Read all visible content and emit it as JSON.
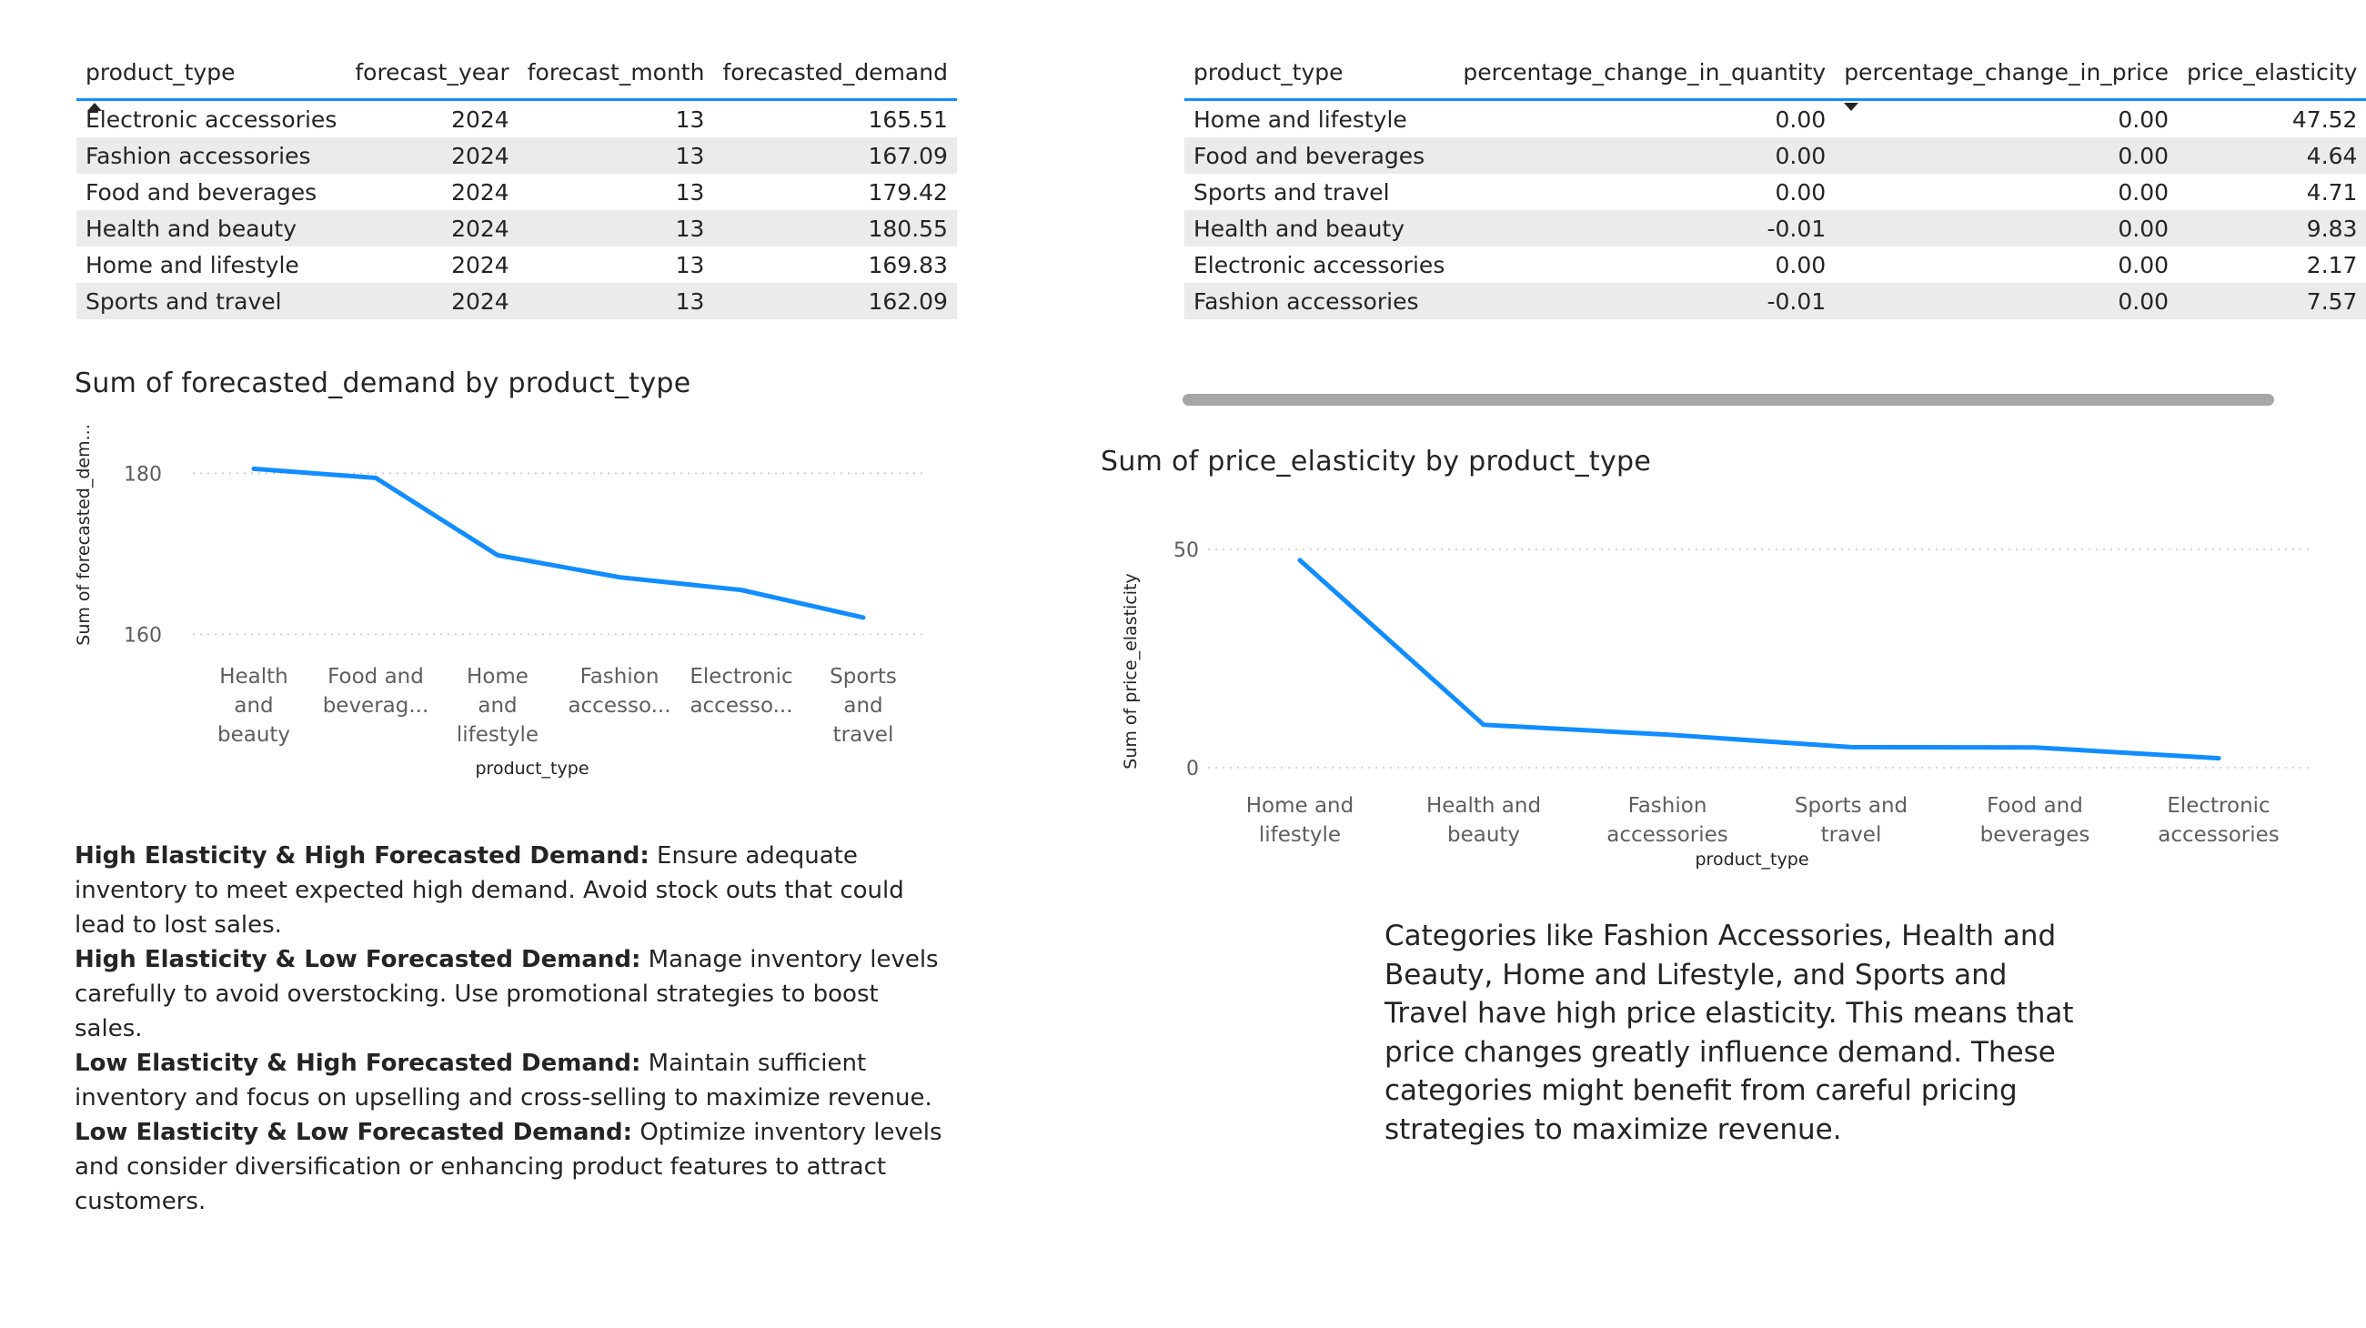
{
  "demand_table": {
    "columns": [
      "product_type",
      "forecast_year",
      "forecast_month",
      "forecasted_demand"
    ],
    "rows": [
      [
        "Electronic accessories",
        "2024",
        "13",
        "165.51"
      ],
      [
        "Fashion accessories",
        "2024",
        "13",
        "167.09"
      ],
      [
        "Food and beverages",
        "2024",
        "13",
        "179.42"
      ],
      [
        "Health and beauty",
        "2024",
        "13",
        "180.55"
      ],
      [
        "Home and lifestyle",
        "2024",
        "13",
        "169.83"
      ],
      [
        "Sports and travel",
        "2024",
        "13",
        "162.09"
      ]
    ]
  },
  "elasticity_table": {
    "columns": [
      "product_type",
      "percentage_change_in_quantity",
      "percentage_change_in_price",
      "price_elasticity"
    ],
    "rows": [
      [
        "Home and lifestyle",
        "0.00",
        "0.00",
        "47.52"
      ],
      [
        "Food and beverages",
        "0.00",
        "0.00",
        "4.64"
      ],
      [
        "Sports and travel",
        "0.00",
        "0.00",
        "4.71"
      ],
      [
        "Health and beauty",
        "-0.01",
        "0.00",
        "9.83"
      ],
      [
        "Electronic accessories",
        "0.00",
        "0.00",
        "2.17"
      ],
      [
        "Fashion accessories",
        "-0.01",
        "0.00",
        "7.57"
      ]
    ]
  },
  "chart_data": [
    {
      "type": "line",
      "title": "Sum of forecasted_demand by product_type",
      "xlabel": "product_type",
      "ylabel": "Sum of forecasted_dem...",
      "categories": [
        [
          "Health",
          "and",
          "beauty"
        ],
        [
          "Food and",
          "beverag..."
        ],
        [
          "Home",
          "and",
          "lifestyle"
        ],
        [
          "Fashion",
          "accesso..."
        ],
        [
          "Electronic",
          "accesso..."
        ],
        [
          "Sports",
          "and",
          "travel"
        ]
      ],
      "values": [
        180.55,
        179.42,
        169.83,
        167.09,
        165.51,
        162.09
      ],
      "yticks": [
        "160",
        "180"
      ],
      "ylim": [
        157,
        185
      ],
      "grid": true,
      "color": "#118dff"
    },
    {
      "type": "line",
      "title": "Sum of price_elasticity by product_type",
      "xlabel": "product_type",
      "ylabel": "Sum of price_elasticity",
      "categories": [
        [
          "Home and",
          "lifestyle"
        ],
        [
          "Health and",
          "beauty"
        ],
        [
          "Fashion",
          "accessories"
        ],
        [
          "Sports and",
          "travel"
        ],
        [
          "Food and",
          "beverages"
        ],
        [
          "Electronic",
          "accessories"
        ]
      ],
      "values": [
        47.52,
        9.83,
        7.57,
        4.71,
        4.64,
        2.17
      ],
      "yticks": [
        "0",
        "50"
      ],
      "ylim": [
        0,
        50
      ],
      "grid": true,
      "color": "#118dff"
    }
  ],
  "notes": [
    {
      "bold": "High Elasticity & High Forecasted Demand:",
      "text": " Ensure adequate inventory to meet expected high demand. Avoid stock outs that could lead to lost sales."
    },
    {
      "bold": "High Elasticity & Low Forecasted Demand:",
      "text": " Manage inventory levels carefully to avoid overstocking. Use promotional strategies to boost sales."
    },
    {
      "bold": "Low Elasticity & High Forecasted Demand:",
      "text": " Maintain sufficient inventory and focus on upselling and cross-selling to maximize revenue."
    },
    {
      "bold": "Low Elasticity & Low Forecasted Demand:",
      "text": " Optimize inventory levels and consider diversification or enhancing product features to attract customers."
    }
  ],
  "insight": "Categories like Fashion Accessories, Health and Beauty, Home and Lifestyle, and Sports and Travel have high price elasticity. This means that price changes greatly influence demand. These categories might benefit from careful pricing strategies to maximize revenue."
}
